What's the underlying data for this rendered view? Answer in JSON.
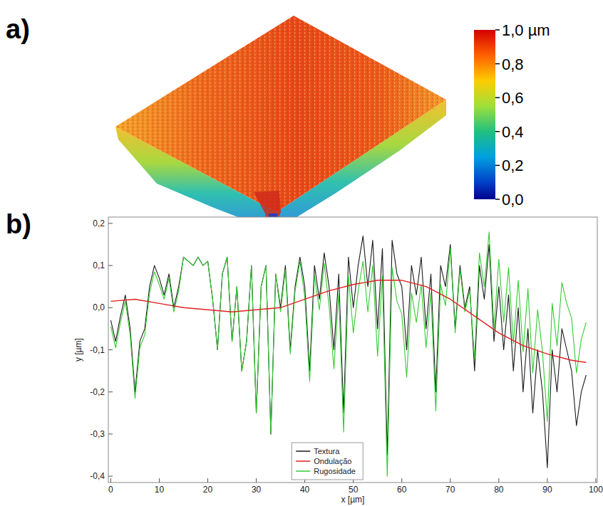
{
  "chart_data": [
    {
      "type": "surface",
      "label": "a)",
      "colorbar": {
        "range": [
          0,
          1
        ],
        "ticks": [
          {
            "value": 0,
            "label": "0,0"
          },
          {
            "value": 0.2,
            "label": "0,2"
          },
          {
            "value": 0.4,
            "label": "0,4"
          },
          {
            "value": 0.6,
            "label": "0,6"
          },
          {
            "value": 0.8,
            "label": "0,8"
          },
          {
            "value": 1,
            "label": "1,0 µm"
          }
        ]
      }
    },
    {
      "type": "line",
      "label": "b)",
      "x_label": "x [µm]",
      "y_label": "y [µm]",
      "xlim": [
        -0.5,
        100.3
      ],
      "ylim": [
        -0.415,
        0.215
      ],
      "xticks": [
        0,
        10,
        20,
        30,
        40,
        50,
        60,
        70,
        80,
        90,
        100
      ],
      "yticks": [
        {
          "value": -0.4,
          "label": "-0,4"
        },
        {
          "value": -0.3,
          "label": "-0,3"
        },
        {
          "value": -0.2,
          "label": "-0,2"
        },
        {
          "value": -0.1,
          "label": "-0,1"
        },
        {
          "value": 0,
          "label": "0,0"
        },
        {
          "value": 0.1,
          "label": "0,1"
        },
        {
          "value": 0.2,
          "label": "0,2"
        }
      ],
      "grid": false,
      "legend": "bottom",
      "x": [
        0,
        1,
        2,
        3,
        4,
        5,
        6,
        7,
        8,
        9,
        10,
        11,
        12,
        13,
        14,
        15,
        16,
        17,
        18,
        19,
        20,
        21,
        22,
        23,
        24,
        25,
        26,
        27,
        28,
        29,
        30,
        31,
        32,
        33,
        34,
        35,
        36,
        37,
        38,
        39,
        40,
        41,
        42,
        43,
        44,
        45,
        46,
        47,
        48,
        49,
        50,
        51,
        52,
        53,
        54,
        55,
        56,
        57,
        58,
        59,
        60,
        61,
        62,
        63,
        64,
        65,
        66,
        67,
        68,
        69,
        70,
        71,
        72,
        73,
        74,
        75,
        76,
        77,
        78,
        79,
        80,
        81,
        82,
        83,
        84,
        85,
        86,
        87,
        88,
        89,
        90,
        91,
        92,
        93,
        94,
        95,
        96,
        97,
        98
      ],
      "series": [
        {
          "name": "Textura",
          "color": "#1a1a1a",
          "values": [
            -0.03,
            -0.08,
            -0.02,
            0.03,
            -0.05,
            -0.2,
            -0.08,
            -0.05,
            0.05,
            0.1,
            0.07,
            0.03,
            0.08,
            0,
            0.05,
            0.12,
            0.11,
            0.1,
            0.12,
            0.1,
            0.11,
            0.02,
            -0.1,
            0.08,
            0.12,
            -0.08,
            0.05,
            -0.15,
            -0.08,
            0.1,
            -0.25,
            0.05,
            0.1,
            -0.3,
            0.08,
            0,
            0.1,
            -0.1,
            0.05,
            0.12,
            0.05,
            -0.15,
            0.1,
            0.02,
            0.13,
            0.05,
            -0.1,
            0.08,
            -0.25,
            0.12,
            0,
            0.1,
            0.17,
            0.05,
            0.16,
            -0.05,
            0.14,
            -0.35,
            0.16,
            0.08,
            0.05,
            -0.1,
            0.1,
            0.03,
            0.12,
            -0.05,
            0.08,
            -0.2,
            0.1,
            0.05,
            0.15,
            -0.05,
            0.1,
            0,
            0.05,
            -0.15,
            0.1,
            0.02,
            0.15,
            -0.08,
            0.05,
            -0.1,
            0.03,
            -0.15,
            0,
            -0.2,
            -0.05,
            -0.25,
            -0.1,
            -0.2,
            -0.38,
            -0.1,
            -0.2,
            -0.05,
            -0.1,
            -0.15,
            -0.28,
            -0.2,
            -0.16
          ]
        },
        {
          "name": "Ondulação",
          "color": "#e02020",
          "x": [
            0,
            5,
            10,
            15,
            20,
            25,
            30,
            35,
            40,
            45,
            50,
            55,
            60,
            65,
            70,
            75,
            80,
            85,
            90,
            95,
            98
          ],
          "values": [
            0.015,
            0.02,
            0.01,
            0,
            -0.005,
            -0.01,
            -0.005,
            0,
            0.02,
            0.04,
            0.055,
            0.065,
            0.065,
            0.05,
            0.02,
            -0.02,
            -0.06,
            -0.09,
            -0.11,
            -0.125,
            -0.13
          ]
        },
        {
          "name": "Rugosidade",
          "color": "#33cc33",
          "values": [
            -0.045,
            -0.095,
            -0.035,
            0.015,
            -0.065,
            -0.215,
            -0.095,
            -0.065,
            0.035,
            0.085,
            0.055,
            0.02,
            0.07,
            -0.01,
            0.04,
            0.12,
            0.11,
            0.1,
            0.12,
            0.1,
            0.11,
            0.02,
            -0.1,
            0.08,
            0.12,
            -0.08,
            0.05,
            -0.15,
            -0.08,
            0.1,
            -0.25,
            0.05,
            0.1,
            -0.3,
            0.08,
            -0.01,
            0.09,
            -0.11,
            0.04,
            0.11,
            0.025,
            -0.175,
            0.075,
            -0.005,
            0.105,
            0.005,
            -0.145,
            0.035,
            -0.295,
            0.075,
            -0.06,
            0.04,
            0.11,
            -0.01,
            0.1,
            -0.115,
            0.075,
            -0.4,
            0.095,
            0.015,
            -0.015,
            -0.165,
            0.035,
            -0.035,
            0.055,
            -0.095,
            0.035,
            -0.245,
            0.055,
            0.005,
            0.14,
            -0.06,
            0.09,
            -0.01,
            0.04,
            -0.12,
            0.13,
            0.05,
            0.18,
            -0.05,
            0.115,
            -0.035,
            0.095,
            -0.085,
            0.065,
            -0.105,
            0.045,
            -0.155,
            -0.005,
            -0.105,
            -0.27,
            0.01,
            -0.09,
            0.06,
            0.01,
            -0.025,
            -0.155,
            -0.075,
            -0.035
          ]
        }
      ]
    }
  ]
}
